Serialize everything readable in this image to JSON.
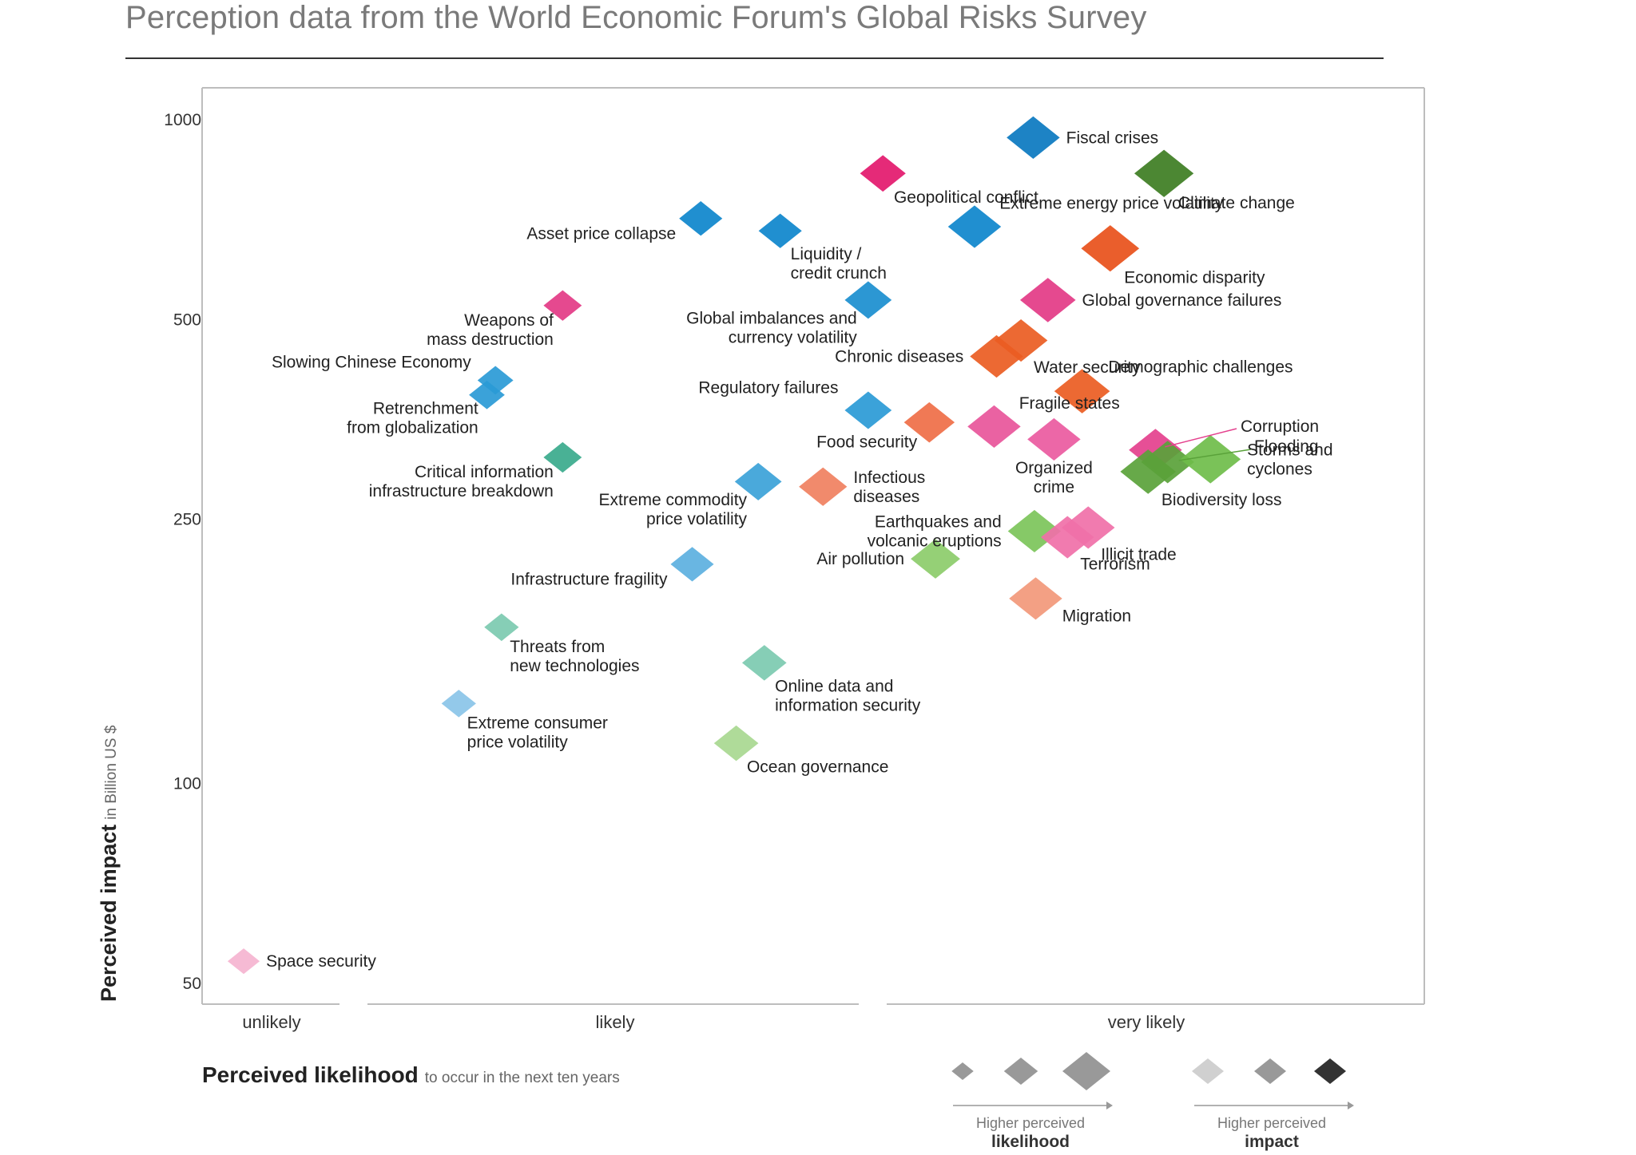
{
  "title": "Perception data from the World Economic Forum's Global Risks Survey",
  "chart_data": {
    "type": "scatter",
    "title": "Perception data from the World Economic Forum's Global Risks Survey",
    "xlabel": "Perceived likelihood",
    "xlabel_note": "to occur in the next ten years",
    "ylabel": "Perceived impact",
    "ylabel_note": "in Billion US $",
    "x_tick_labels": [
      "unlikely",
      "likely",
      "very likely"
    ],
    "xlim": [
      0,
      100
    ],
    "y_ticks": [
      {
        "value": 1000,
        "label": "1000"
      },
      {
        "value": 500,
        "label": "500"
      },
      {
        "value": 250,
        "label": "250"
      },
      {
        "value": 100,
        "label": "100"
      },
      {
        "value": 50,
        "label": "50"
      }
    ],
    "ylim": [
      48,
      1150
    ],
    "y_scale": "log",
    "grid": false,
    "legend": {
      "likelihood_label_line1": "Higher perceived",
      "likelihood_label_line2": "likelihood",
      "impact_label_line1": "Higher perceived",
      "impact_label_line2": "impact",
      "placement": "bottom-right"
    },
    "colors": {
      "economic": "#0a82c8",
      "geopolitical": "#e6196e",
      "societal": "#e8561e",
      "environmental": "#4a8a2a",
      "technological": "#3aaa8c",
      "legend_gray_light": "#d0d0d0",
      "legend_gray_mid": "#999999",
      "legend_gray_dark": "#333333"
    },
    "points": [
      {
        "name": "Fiscal crises",
        "label_lines": [
          "Fiscal crises"
        ],
        "x": 68.0,
        "y": 940,
        "size": 3,
        "color": "#0a78c0",
        "label_pos": "right"
      },
      {
        "name": "Climate change",
        "label_lines": [
          "Climate change"
        ],
        "x": 78.7,
        "y": 830,
        "size": 3.5,
        "color": "#3d7d22",
        "label_pos": "below-right"
      },
      {
        "name": "Geopolitical conflict",
        "label_lines": [
          "Geopolitical conflict"
        ],
        "x": 55.7,
        "y": 830,
        "size": 2.4,
        "color": "#e3186c",
        "label_pos": "below-right"
      },
      {
        "name": "Extreme energy price volatility",
        "label_lines": [
          "Extreme energy price volatility"
        ],
        "x": 63.2,
        "y": 690,
        "size": 3,
        "color": "#0d86cc",
        "label_pos": "right-up"
      },
      {
        "name": "Asset price collapse",
        "label_lines": [
          "Asset price collapse"
        ],
        "x": 40.8,
        "y": 710,
        "size": 2.2,
        "color": "#0d86cc",
        "label_pos": "left-below"
      },
      {
        "name": "Liquidity / credit crunch",
        "label_lines": [
          "Liquidity /",
          "credit crunch"
        ],
        "x": 47.3,
        "y": 680,
        "size": 2.2,
        "color": "#0d86cc",
        "label_pos": "below-right"
      },
      {
        "name": "Economic disparity",
        "label_lines": [
          "Economic disparity"
        ],
        "x": 74.3,
        "y": 640,
        "size": 3.4,
        "color": "#e8501a",
        "label_pos": "below-right"
      },
      {
        "name": "Global governance failures",
        "label_lines": [
          "Global governance failures"
        ],
        "x": 69.2,
        "y": 535,
        "size": 3.2,
        "color": "#e33a86",
        "label_pos": "right"
      },
      {
        "name": "Weapons of mass destruction",
        "label_lines": [
          "Weapons of",
          "mass destruction"
        ],
        "x": 29.5,
        "y": 525,
        "size": 1.8,
        "color": "#e33a86",
        "label_pos": "below-left"
      },
      {
        "name": "Global imbalances and currency volatility",
        "label_lines": [
          "Global imbalances and",
          "currency volatility"
        ],
        "x": 54.5,
        "y": 535,
        "size": 2.5,
        "color": "#1a8ecf",
        "label_pos": "below-left"
      },
      {
        "name": "Water security",
        "label_lines": [
          "Water security"
        ],
        "x": 67.0,
        "y": 465,
        "size": 3,
        "color": "#ea5c22",
        "label_pos": "below-right"
      },
      {
        "name": "Chronic diseases",
        "label_lines": [
          "Chronic diseases"
        ],
        "x": 65.0,
        "y": 440,
        "size": 3,
        "color": "#ea5c22",
        "label_pos": "left"
      },
      {
        "name": "Demographic challenges",
        "label_lines": [
          "Demographic challenges"
        ],
        "x": 72.0,
        "y": 390,
        "size": 3.2,
        "color": "#ea5c22",
        "label_pos": "right-up"
      },
      {
        "name": "Slowing Chinese Economy",
        "label_lines": [
          "Slowing Chinese Economy"
        ],
        "x": 24.0,
        "y": 405,
        "size": 1.6,
        "color": "#2a9ad6",
        "label_pos": "left-up"
      },
      {
        "name": "Retrenchment from globalization",
        "label_lines": [
          "Retrenchment",
          "from globalization"
        ],
        "x": 23.3,
        "y": 385,
        "size": 1.6,
        "color": "#2a9ad6",
        "label_pos": "below-left"
      },
      {
        "name": "Regulatory failures",
        "label_lines": [
          "Regulatory failures"
        ],
        "x": 54.5,
        "y": 365,
        "size": 2.5,
        "color": "#2a9ad6",
        "label_pos": "left-up"
      },
      {
        "name": "Food security",
        "label_lines": [
          "Food security"
        ],
        "x": 59.5,
        "y": 350,
        "size": 2.8,
        "color": "#ef6e46",
        "label_pos": "below-left"
      },
      {
        "name": "Fragile states",
        "label_lines": [
          "Fragile states"
        ],
        "x": 64.8,
        "y": 345,
        "size": 3,
        "color": "#e8559a",
        "label_pos": "right-up"
      },
      {
        "name": "Organized crime",
        "label_lines": [
          "Organized",
          "crime"
        ],
        "x": 69.7,
        "y": 330,
        "size": 3,
        "color": "#ea5aa0",
        "label_pos": "below"
      },
      {
        "name": "Corruption",
        "label_lines": [
          "Corruption"
        ],
        "x": 78.0,
        "y": 318,
        "size": 3,
        "color": "#e4408d",
        "label_pos": "leader-1"
      },
      {
        "name": "Flooding",
        "label_lines": [
          "Flooding"
        ],
        "x": 79.0,
        "y": 305,
        "size": 3,
        "color": "#5aa23a",
        "label_pos": "leader-2"
      },
      {
        "name": "Storms and cyclones",
        "label_lines": [
          "Storms and",
          "cyclones"
        ],
        "x": 82.5,
        "y": 308,
        "size": 3.6,
        "color": "#6fbd4a",
        "label_pos": "right"
      },
      {
        "name": "Biodiversity loss",
        "label_lines": [
          "Biodiversity loss"
        ],
        "x": 77.4,
        "y": 295,
        "size": 3.2,
        "color": "#5aa23a",
        "label_pos": "below-right"
      },
      {
        "name": "Critical information infrastructure breakdown",
        "label_lines": [
          "Critical information",
          "infrastructure breakdown"
        ],
        "x": 29.5,
        "y": 310,
        "size": 1.8,
        "color": "#3aaa8c",
        "label_pos": "below-left"
      },
      {
        "name": "Extreme commodity price volatility",
        "label_lines": [
          "Extreme commodity",
          "price volatility"
        ],
        "x": 45.5,
        "y": 285,
        "size": 2.5,
        "color": "#3ba2d8",
        "label_pos": "below-left"
      },
      {
        "name": "Infectious diseases",
        "label_lines": [
          "Infectious",
          "diseases"
        ],
        "x": 50.8,
        "y": 280,
        "size": 2.6,
        "color": "#f08060",
        "label_pos": "right"
      },
      {
        "name": "Earthquakes and volcanic eruptions",
        "label_lines": [
          "Earthquakes and",
          "volcanic eruptions"
        ],
        "x": 68.1,
        "y": 240,
        "size": 3,
        "color": "#7cc45a",
        "label_pos": "left"
      },
      {
        "name": "Illicit trade",
        "label_lines": [
          "Illicit trade"
        ],
        "x": 72.5,
        "y": 243,
        "size": 3,
        "color": "#f070a8",
        "label_pos": "below-right"
      },
      {
        "name": "Terrorism",
        "label_lines": [
          "Terrorism"
        ],
        "x": 70.8,
        "y": 235,
        "size": 3,
        "color": "#f070a8",
        "label_pos": "below-right"
      },
      {
        "name": "Infrastructure fragility",
        "label_lines": [
          "Infrastructure fragility"
        ],
        "x": 40.1,
        "y": 214,
        "size": 2.2,
        "color": "#5cb0e0",
        "label_pos": "left-below"
      },
      {
        "name": "Air pollution",
        "label_lines": [
          "Air pollution"
        ],
        "x": 60.0,
        "y": 218,
        "size": 2.7,
        "color": "#8ccc6a",
        "label_pos": "left"
      },
      {
        "name": "Migration",
        "label_lines": [
          "Migration"
        ],
        "x": 68.2,
        "y": 190,
        "size": 3,
        "color": "#f2987a",
        "label_pos": "right-below"
      },
      {
        "name": "Threats from new technologies",
        "label_lines": [
          "Threats from",
          "new technologies"
        ],
        "x": 24.5,
        "y": 172,
        "size": 1.5,
        "color": "#7ccab0",
        "label_pos": "below-right"
      },
      {
        "name": "Online data and information security",
        "label_lines": [
          "Online data and",
          "information security"
        ],
        "x": 46.0,
        "y": 152,
        "size": 2.3,
        "color": "#7ccab0",
        "label_pos": "below-right"
      },
      {
        "name": "Extreme consumer price volatility",
        "label_lines": [
          "Extreme consumer",
          "price volatility"
        ],
        "x": 21.0,
        "y": 132,
        "size": 1.5,
        "color": "#8ac4e8",
        "label_pos": "below-right"
      },
      {
        "name": "Ocean governance",
        "label_lines": [
          "Ocean governance"
        ],
        "x": 43.7,
        "y": 115,
        "size": 2.3,
        "color": "#a8d890",
        "label_pos": "below-right"
      },
      {
        "name": "Space security",
        "label_lines": [
          "Space security"
        ],
        "x": 3.4,
        "y": 54,
        "size": 1.3,
        "color": "#f5b4d0",
        "label_pos": "right"
      }
    ]
  }
}
